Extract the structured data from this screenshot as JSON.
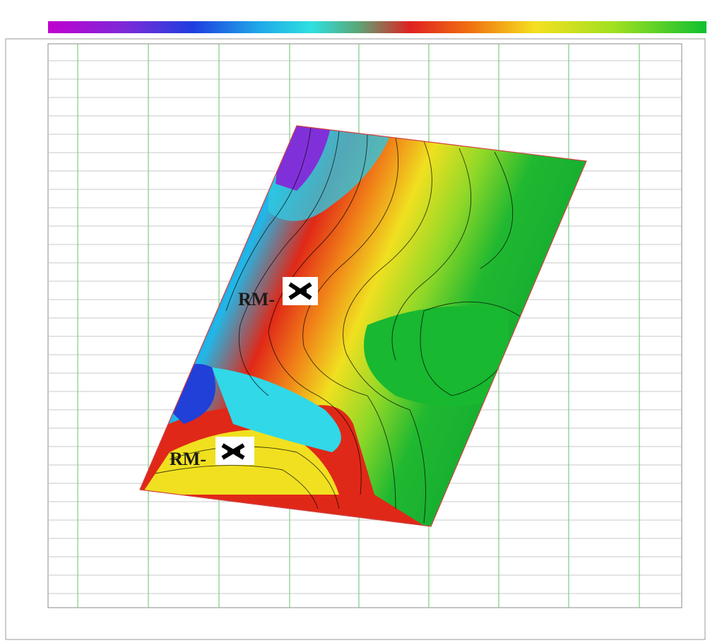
{
  "wells": [
    {
      "label": "RM-"
    },
    {
      "label": "RM-"
    }
  ]
}
